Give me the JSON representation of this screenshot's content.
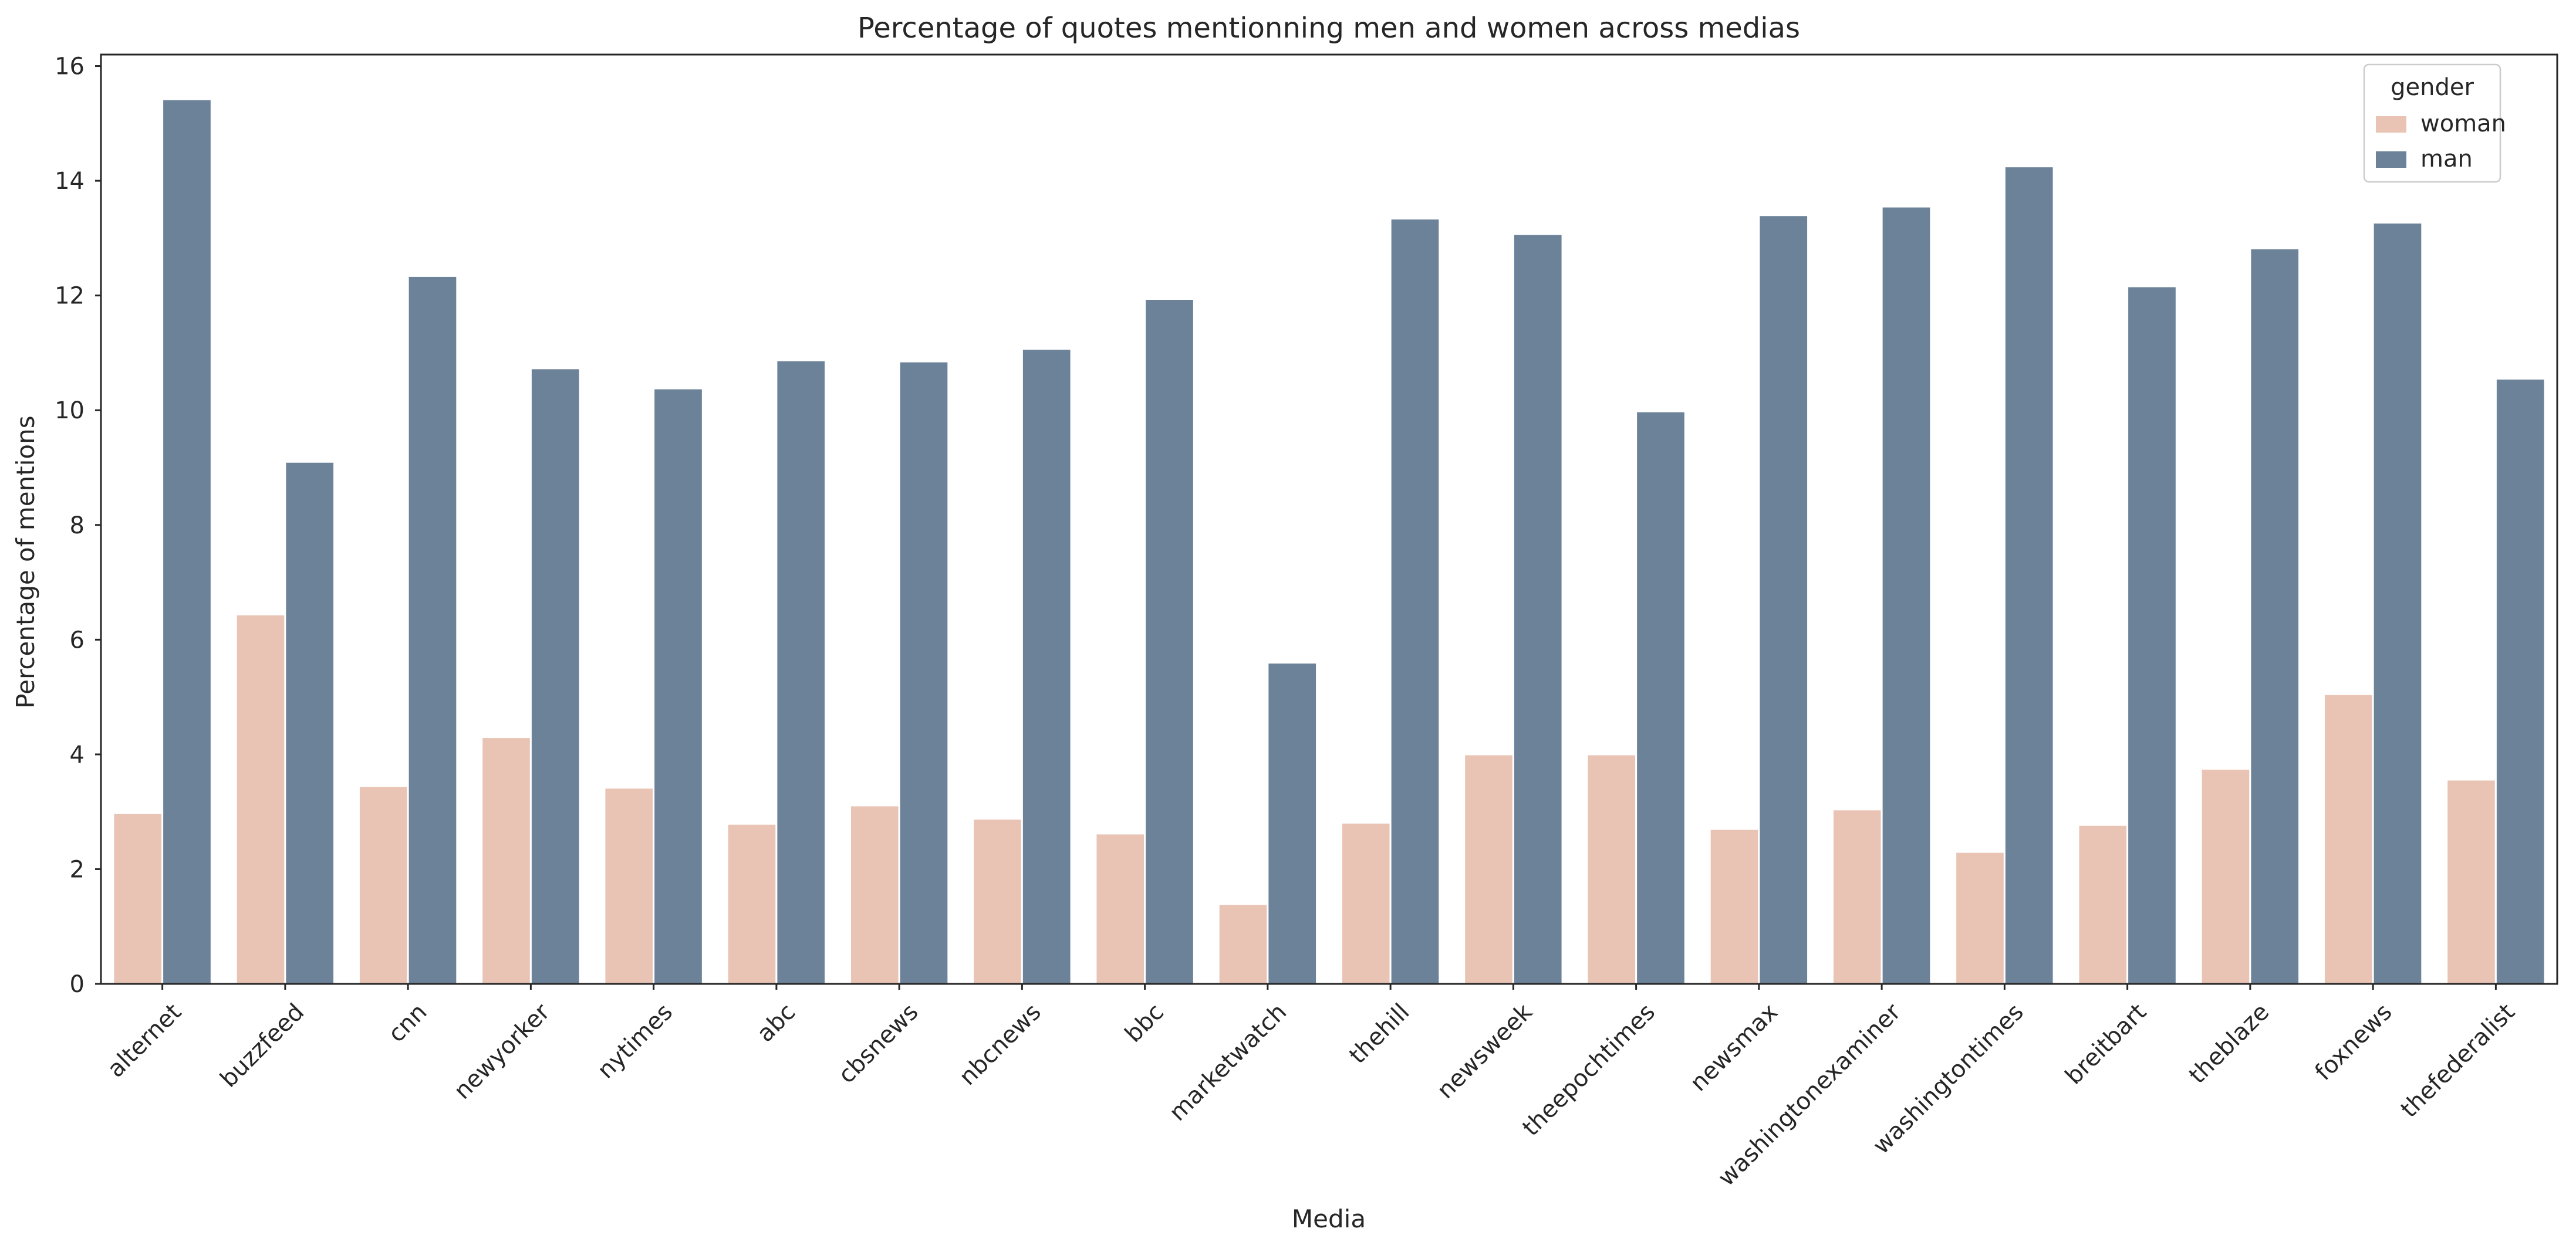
{
  "chart_data": {
    "type": "bar",
    "title": "Percentage of quotes mentionning men and women across medias",
    "xlabel": "Media",
    "ylabel": "Percentage of mentions",
    "ylim": [
      0,
      16.2
    ],
    "yticks": [
      0,
      2,
      4,
      6,
      8,
      10,
      12,
      14,
      16
    ],
    "grid": false,
    "legend": {
      "title": "gender",
      "placement": "top-right"
    },
    "categories": [
      "alternet",
      "buzzfeed",
      "cnn",
      "newyorker",
      "nytimes",
      "abc",
      "cbsnews",
      "nbcnews",
      "bbc",
      "marketwatch",
      "thehill",
      "newsweek",
      "theepochtimes",
      "newsmax",
      "washingtonexaminer",
      "washingtontimes",
      "breitbart",
      "theblaze",
      "foxnews",
      "thefederalist"
    ],
    "series": [
      {
        "name": "woman",
        "color": "#e9c4b5",
        "values": [
          2.98,
          6.44,
          3.45,
          4.3,
          3.42,
          2.79,
          3.11,
          2.88,
          2.62,
          1.39,
          2.81,
          4.0,
          4.0,
          2.7,
          3.04,
          2.3,
          2.77,
          3.75,
          5.05,
          3.56
        ]
      },
      {
        "name": "man",
        "color": "#6b8299",
        "values": [
          15.42,
          9.1,
          12.34,
          10.73,
          10.38,
          10.87,
          10.85,
          11.07,
          11.94,
          5.6,
          13.34,
          13.07,
          9.98,
          13.4,
          13.55,
          14.25,
          12.16,
          12.82,
          13.27,
          10.55
        ]
      }
    ]
  }
}
